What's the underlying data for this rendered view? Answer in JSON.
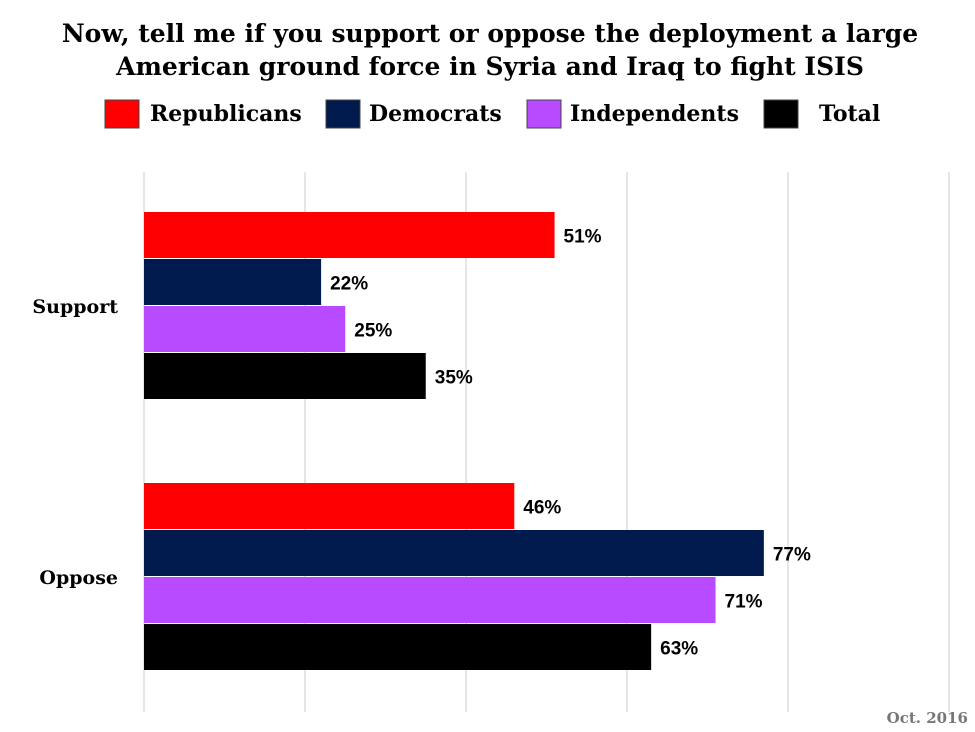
{
  "chart_data": {
    "type": "bar",
    "orientation": "horizontal",
    "title_lines": [
      "Now, tell me if you support or oppose the deployment a large",
      "American ground force in Syria and Iraq to fight ISIS"
    ],
    "categories": [
      "Support",
      "Oppose"
    ],
    "series": [
      {
        "name": "Republicans",
        "color": "#ff0000",
        "values": [
          51,
          46
        ]
      },
      {
        "name": "Democrats",
        "color": "#001a4d",
        "values": [
          22,
          77
        ]
      },
      {
        "name": "Independents",
        "color": "#b84bff",
        "values": [
          25,
          71
        ]
      },
      {
        "name": "Total",
        "color": "#000000",
        "values": [
          35,
          63
        ]
      }
    ],
    "value_suffix": "%",
    "xlim": [
      0,
      100
    ],
    "grid": true,
    "legend_position": "top",
    "footnote": "Oct. 2016"
  }
}
